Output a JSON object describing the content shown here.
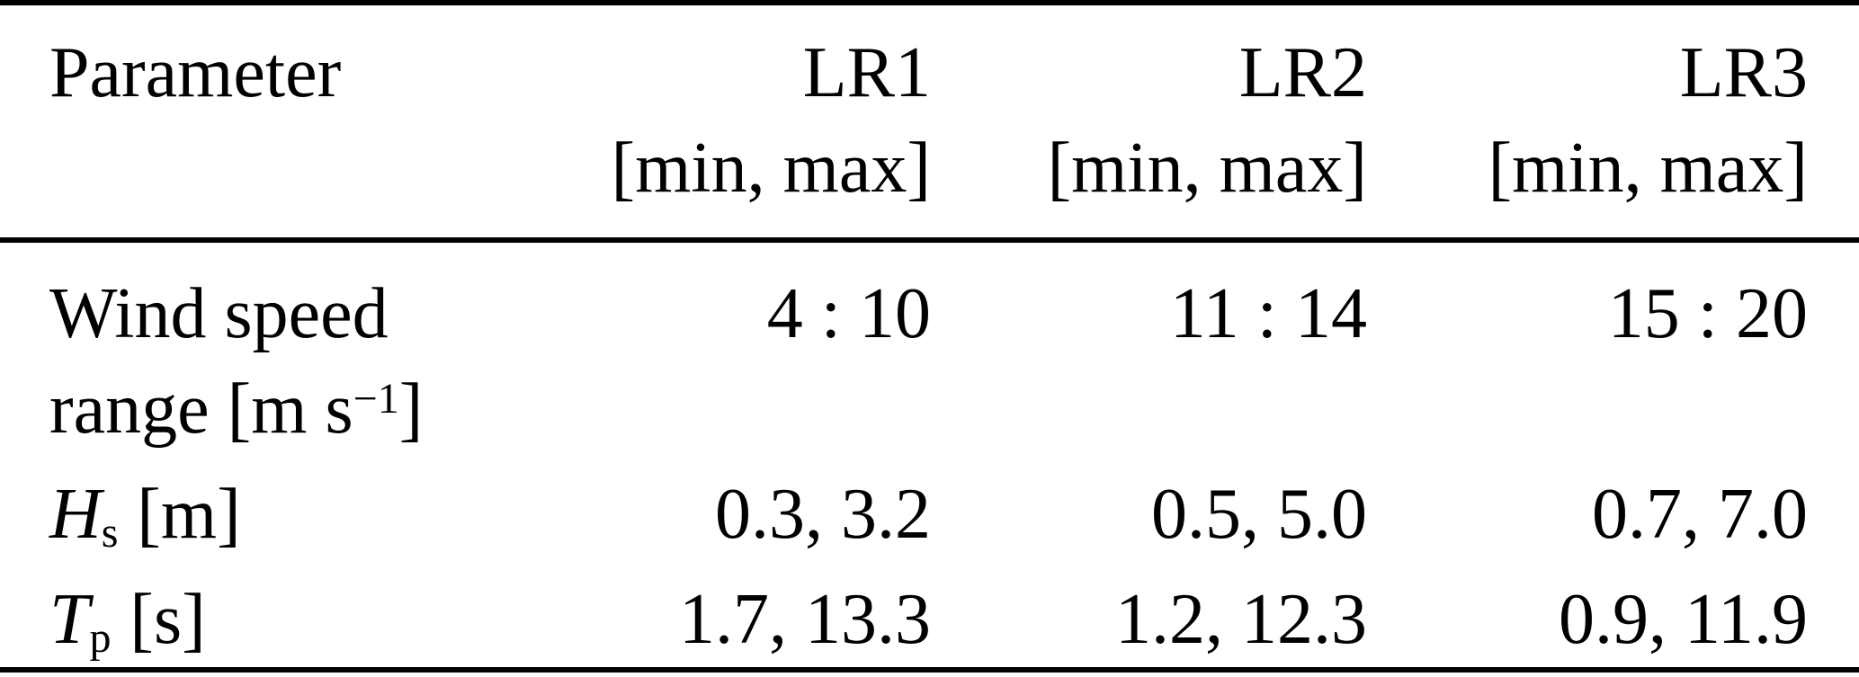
{
  "table": {
    "header": {
      "param_label": "Parameter",
      "columns": [
        {
          "name": "LR1",
          "range_label": "[min, max]"
        },
        {
          "name": "LR2",
          "range_label": "[min, max]"
        },
        {
          "name": "LR3",
          "range_label": "[min, max]"
        }
      ]
    },
    "rows": [
      {
        "label_line1": "Wind speed",
        "label_line2_prefix": "range [m s",
        "label_line2_superscript": "−1",
        "label_line2_suffix": "]",
        "values": [
          "4 : 10",
          "11 : 14",
          "15 : 20"
        ]
      },
      {
        "symbol": "H",
        "symbol_subscript": "s",
        "unit": "[m]",
        "values": [
          "0.3, 3.2",
          "0.5, 5.0",
          "0.7, 7.0"
        ]
      },
      {
        "symbol": "T",
        "symbol_subscript": "p",
        "unit": "[s]",
        "values": [
          "1.7, 13.3",
          "1.2, 12.3",
          "0.9, 11.9"
        ]
      }
    ],
    "colors": {
      "text": "#000000",
      "background": "#ffffff",
      "rule": "#000000"
    }
  }
}
